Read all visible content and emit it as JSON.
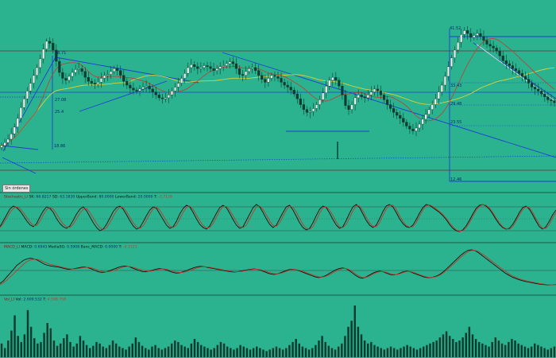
{
  "toolbar": {
    "order_button": "Sin órdenes"
  },
  "colors": {
    "background": "#2bb38f",
    "price_up": "#0f3c30",
    "price_down": "#0f3c30",
    "trendline": "#1d3fd6",
    "ma_yellow": "#d8d23a",
    "ma_red": "#b5473a",
    "ma_maroon": "#6b2c2c",
    "oscillator_black": "#101010",
    "oscillator_red": "#c0392b",
    "level_line": "#1a3a8c",
    "volume": "#0f3c30"
  },
  "chart_data": [
    {
      "type": "candlestick",
      "panel": "price",
      "price_labels": [
        "41.52",
        "38.71",
        "27.08",
        "25.4",
        "18.86",
        "33.43",
        "29.48",
        "23.55",
        "12.46"
      ],
      "y_range": [
        12.46,
        41.52
      ],
      "close": [
        17.2,
        17.8,
        18.5,
        19.6,
        21.0,
        22.8,
        25.0,
        26.8,
        28.4,
        30.0,
        31.6,
        33.2,
        35.0,
        37.0,
        38.6,
        38.2,
        36.8,
        34.5,
        32.2,
        31.0,
        30.6,
        31.4,
        32.2,
        32.8,
        33.0,
        32.4,
        31.2,
        30.4,
        30.0,
        29.8,
        30.2,
        31.0,
        31.6,
        31.8,
        32.4,
        33.0,
        32.6,
        31.6,
        30.4,
        29.6,
        29.0,
        28.6,
        28.4,
        28.8,
        29.2,
        29.4,
        28.8,
        28.2,
        27.6,
        27.0,
        26.8,
        27.0,
        27.6,
        28.4,
        29.2,
        30.0,
        31.0,
        32.0,
        33.2,
        33.8,
        33.4,
        33.0,
        33.2,
        33.6,
        33.4,
        33.0,
        32.6,
        33.0,
        33.4,
        33.6,
        34.0,
        34.4,
        34.0,
        33.0,
        31.8,
        31.6,
        32.4,
        33.0,
        33.2,
        32.6,
        31.6,
        30.8,
        30.2,
        31.0,
        31.6,
        31.4,
        31.0,
        30.2,
        29.6,
        29.2,
        28.6,
        27.8,
        26.8,
        25.6,
        24.6,
        24.0,
        24.2,
        24.8,
        25.6,
        26.6,
        28.0,
        29.4,
        30.6,
        31.2,
        30.6,
        29.4,
        27.6,
        25.4,
        24.6,
        25.6,
        27.0,
        27.6,
        27.2,
        27.0,
        27.6,
        28.2,
        28.8,
        28.4,
        27.6,
        26.6,
        25.6,
        24.8,
        24.0,
        23.4,
        22.8,
        22.0,
        21.2,
        20.6,
        20.2,
        20.8,
        21.6,
        22.6,
        23.6,
        24.6,
        25.6,
        26.8,
        28.2,
        29.6,
        31.4,
        33.4,
        35.2,
        36.8,
        38.4,
        40.0,
        40.8,
        40.2,
        39.4,
        39.8,
        40.2,
        39.6,
        38.8,
        38.0,
        37.6,
        37.2,
        36.6,
        35.6,
        34.6,
        34.0,
        33.6,
        33.0,
        32.6,
        32.0,
        31.4,
        30.8,
        30.0,
        29.2,
        28.8,
        28.4,
        27.8,
        27.2,
        26.6,
        26.4,
        26.0
      ]
    },
    {
      "type": "line",
      "panel": "stochastic",
      "title_parts": [
        {
          "text": "Stochastic_LI ",
          "color": "#8b1010"
        },
        {
          "text": "SK: ",
          "color": "#101010"
        },
        {
          "text": "66.8217",
          "color": "#0a2a6e"
        },
        {
          "text": "  SD: ",
          "color": "#101010"
        },
        {
          "text": "63.1830",
          "color": "#0a2a6e"
        },
        {
          "text": "  UpperBand: ",
          "color": "#101010"
        },
        {
          "text": "80.0000",
          "color": "#0a2a6e"
        },
        {
          "text": "  LowerBand: ",
          "color": "#101010"
        },
        {
          "text": "20.0000",
          "color": "#0a2a6e"
        },
        {
          "text": "  T: ",
          "color": "#101010"
        },
        {
          "text": "-2.7126",
          "color": "#c0392b"
        }
      ],
      "y_range": [
        0,
        100
      ],
      "bands": [
        80,
        20
      ],
      "series": [
        {
          "name": "SK",
          "color": "#101010",
          "values": [
            30,
            45,
            60,
            75,
            82,
            78,
            70,
            58,
            45,
            35,
            30,
            38,
            55,
            70,
            80,
            76,
            66,
            50,
            38,
            30,
            26,
            32,
            46,
            62,
            74,
            80,
            70,
            55,
            40,
            28,
            20,
            24,
            36,
            52,
            68,
            78,
            82,
            74,
            60,
            45,
            32,
            24,
            28,
            42,
            58,
            72,
            80,
            76,
            62,
            48,
            34,
            26,
            30,
            44,
            62,
            76,
            84,
            80,
            66,
            50,
            36,
            28,
            24,
            32,
            48,
            64,
            78,
            84,
            78,
            64,
            48,
            34,
            26,
            30,
            46,
            62,
            78,
            86,
            80,
            66,
            50,
            36,
            28,
            34,
            50,
            66,
            80,
            84,
            72,
            56,
            40,
            28,
            22,
            26,
            40,
            58,
            74,
            82,
            78,
            64,
            48,
            34,
            26,
            30,
            46,
            64,
            80,
            86,
            78,
            62,
            46,
            34,
            28,
            34,
            50,
            68,
            82,
            86,
            80,
            66,
            50,
            38,
            30,
            28,
            34,
            48,
            64,
            78,
            86,
            84,
            78,
            72,
            66,
            58,
            48,
            36,
            26,
            20,
            18,
            22,
            32,
            46,
            62,
            76,
            84,
            86,
            82,
            74,
            62,
            48,
            36,
            28,
            24,
            26,
            36,
            50,
            66,
            78,
            82,
            74,
            60,
            44,
            30,
            24,
            30,
            44,
            60,
            72
          ]
        },
        {
          "name": "SD",
          "color": "#c0392b",
          "values": [
            28,
            38,
            52,
            66,
            76,
            80,
            76,
            66,
            54,
            42,
            33,
            33,
            44,
            60,
            73,
            78,
            74,
            62,
            48,
            37,
            30,
            28,
            36,
            50,
            64,
            74,
            76,
            66,
            52,
            38,
            28,
            23,
            27,
            40,
            56,
            70,
            79,
            78,
            68,
            54,
            40,
            30,
            26,
            32,
            46,
            62,
            75,
            79,
            72,
            58,
            44,
            32,
            28,
            34,
            50,
            66,
            79,
            82,
            74,
            60,
            45,
            33,
            27,
            28,
            38,
            54,
            70,
            81,
            81,
            72,
            58,
            43,
            31,
            28,
            34,
            50,
            66,
            80,
            82,
            74,
            60,
            45,
            33,
            31,
            40,
            56,
            72,
            82,
            79,
            67,
            51,
            36,
            26,
            24,
            30,
            46,
            64,
            78,
            80,
            72,
            58,
            42,
            30,
            28,
            36,
            52,
            70,
            83,
            82,
            70,
            54,
            40,
            31,
            30,
            40,
            58,
            74,
            84,
            84,
            74,
            58,
            44,
            33,
            29,
            30,
            40,
            56,
            72,
            83,
            85,
            81,
            75,
            68,
            61,
            52,
            40,
            30,
            22,
            19,
            20,
            27,
            40,
            56,
            71,
            81,
            86,
            84,
            77,
            66,
            52,
            40,
            30,
            25,
            24,
            30,
            44,
            60,
            73,
            80,
            78,
            66,
            50,
            36,
            26,
            26,
            36,
            52,
            66
          ]
        }
      ]
    },
    {
      "type": "line",
      "panel": "macd",
      "title_parts": [
        {
          "text": "MACD_LI ",
          "color": "#8b1010"
        },
        {
          "text": "MACD: ",
          "color": "#101010"
        },
        {
          "text": "0.6943",
          "color": "#0a2a6e"
        },
        {
          "text": "  MediaSG: ",
          "color": "#101010"
        },
        {
          "text": "0.5908",
          "color": "#0a2a6e"
        },
        {
          "text": "  Banc_MACD: ",
          "color": "#101010"
        },
        {
          "text": "0.0000",
          "color": "#0a2a6e"
        },
        {
          "text": "  T: ",
          "color": "#101010"
        },
        {
          "text": "-0.1121",
          "color": "#c0392b"
        }
      ],
      "y_range": [
        -1.6,
        1.6
      ],
      "zero_line": 0,
      "series": [
        {
          "name": "MACD",
          "color": "#101010",
          "values": [
            -1.0,
            -0.8,
            -0.5,
            -0.2,
            0.1,
            0.4,
            0.6,
            0.8,
            0.9,
            0.95,
            0.9,
            0.8,
            0.65,
            0.5,
            0.4,
            0.35,
            0.3,
            0.28,
            0.22,
            0.15,
            0.1,
            0.1,
            0.15,
            0.2,
            0.25,
            0.28,
            0.22,
            0.12,
            0.0,
            -0.1,
            -0.15,
            -0.12,
            -0.05,
            0.05,
            0.15,
            0.25,
            0.32,
            0.35,
            0.3,
            0.2,
            0.1,
            0.0,
            -0.08,
            -0.1,
            -0.05,
            0.02,
            0.1,
            0.15,
            0.12,
            0.05,
            -0.05,
            -0.15,
            -0.2,
            -0.18,
            -0.1,
            0.0,
            0.1,
            0.2,
            0.28,
            0.32,
            0.3,
            0.25,
            0.2,
            0.15,
            0.1,
            0.05,
            0.0,
            -0.05,
            -0.1,
            -0.12,
            -0.1,
            -0.05,
            0.0,
            0.05,
            0.1,
            0.12,
            0.08,
            0.0,
            -0.1,
            -0.2,
            -0.28,
            -0.3,
            -0.25,
            -0.15,
            -0.05,
            0.05,
            0.1,
            0.08,
            0.0,
            -0.1,
            -0.2,
            -0.3,
            -0.4,
            -0.5,
            -0.55,
            -0.5,
            -0.4,
            -0.25,
            -0.1,
            0.05,
            0.15,
            0.2,
            0.15,
            0.0,
            -0.2,
            -0.4,
            -0.55,
            -0.6,
            -0.5,
            -0.35,
            -0.2,
            -0.1,
            -0.05,
            -0.1,
            -0.2,
            -0.3,
            -0.35,
            -0.3,
            -0.2,
            -0.1,
            -0.05,
            -0.1,
            -0.2,
            -0.3,
            -0.4,
            -0.5,
            -0.55,
            -0.55,
            -0.5,
            -0.4,
            -0.25,
            -0.05,
            0.2,
            0.45,
            0.7,
            0.95,
            1.2,
            1.4,
            1.55,
            1.6,
            1.55,
            1.4,
            1.2,
            1.0,
            0.8,
            0.6,
            0.4,
            0.2,
            0.0,
            -0.2,
            -0.35,
            -0.5,
            -0.6,
            -0.7,
            -0.78,
            -0.85,
            -0.9,
            -0.95,
            -1.0,
            -1.05,
            -1.08,
            -1.1,
            -1.12,
            -1.1,
            -1.08
          ]
        },
        {
          "name": "MediaSG",
          "color": "#c0392b",
          "values": [
            -1.1,
            -0.95,
            -0.75,
            -0.5,
            -0.25,
            0.0,
            0.25,
            0.5,
            0.7,
            0.82,
            0.88,
            0.86,
            0.78,
            0.66,
            0.55,
            0.46,
            0.4,
            0.34,
            0.28,
            0.22,
            0.16,
            0.12,
            0.12,
            0.15,
            0.2,
            0.24,
            0.25,
            0.2,
            0.12,
            0.02,
            -0.06,
            -0.1,
            -0.09,
            -0.04,
            0.04,
            0.14,
            0.23,
            0.3,
            0.31,
            0.27,
            0.19,
            0.1,
            0.02,
            -0.04,
            -0.06,
            -0.03,
            0.04,
            0.1,
            0.12,
            0.1,
            0.03,
            -0.06,
            -0.13,
            -0.16,
            -0.14,
            -0.08,
            0.0,
            0.1,
            0.19,
            0.26,
            0.29,
            0.28,
            0.24,
            0.19,
            0.14,
            0.09,
            0.04,
            0.0,
            -0.05,
            -0.09,
            -0.1,
            -0.08,
            -0.04,
            0.01,
            0.06,
            0.1,
            0.1,
            0.05,
            -0.03,
            -0.12,
            -0.2,
            -0.26,
            -0.26,
            -0.2,
            -0.11,
            -0.01,
            0.06,
            0.08,
            0.04,
            -0.04,
            -0.13,
            -0.22,
            -0.32,
            -0.42,
            -0.5,
            -0.51,
            -0.46,
            -0.35,
            -0.2,
            -0.06,
            0.07,
            0.15,
            0.16,
            0.07,
            -0.09,
            -0.28,
            -0.45,
            -0.55,
            -0.53,
            -0.43,
            -0.29,
            -0.17,
            -0.09,
            -0.08,
            -0.15,
            -0.24,
            -0.31,
            -0.31,
            -0.25,
            -0.15,
            -0.08,
            -0.08,
            -0.15,
            -0.24,
            -0.34,
            -0.44,
            -0.51,
            -0.54,
            -0.52,
            -0.45,
            -0.32,
            -0.14,
            0.08,
            0.32,
            0.56,
            0.8,
            1.04,
            1.26,
            1.44,
            1.55,
            1.56,
            1.48,
            1.32,
            1.14,
            0.94,
            0.74,
            0.54,
            0.34,
            0.14,
            -0.06,
            -0.24,
            -0.4,
            -0.52,
            -0.62,
            -0.71,
            -0.79,
            -0.85,
            -0.9,
            -0.95,
            -1.0,
            -1.04,
            -1.07,
            -1.1,
            -1.1,
            -1.09
          ]
        }
      ]
    },
    {
      "type": "bar",
      "panel": "volume",
      "title_parts": [
        {
          "text": "Vol_LI ",
          "color": "#8b1010"
        },
        {
          "text": "Vol: ",
          "color": "#101010"
        },
        {
          "text": "2.609.532",
          "color": "#0a2a6e"
        },
        {
          "text": "  T: ",
          "color": "#101010"
        },
        {
          "text": "4.598.758",
          "color": "#c0392b"
        }
      ],
      "values": [
        18,
        12,
        22,
        35,
        55,
        28,
        20,
        30,
        62,
        40,
        25,
        18,
        20,
        32,
        45,
        38,
        22,
        15,
        18,
        25,
        30,
        20,
        14,
        18,
        28,
        22,
        16,
        12,
        15,
        20,
        18,
        14,
        12,
        16,
        22,
        18,
        14,
        12,
        10,
        14,
        18,
        26,
        20,
        15,
        12,
        10,
        14,
        16,
        12,
        10,
        12,
        14,
        18,
        22,
        20,
        16,
        14,
        12,
        18,
        24,
        20,
        16,
        14,
        12,
        10,
        12,
        16,
        20,
        18,
        14,
        12,
        10,
        12,
        16,
        14,
        12,
        10,
        12,
        14,
        12,
        10,
        8,
        10,
        12,
        14,
        12,
        10,
        12,
        16,
        20,
        24,
        18,
        14,
        12,
        10,
        12,
        16,
        22,
        28,
        20,
        15,
        12,
        10,
        14,
        18,
        28,
        40,
        48,
        68,
        40,
        30,
        22,
        18,
        20,
        16,
        14,
        12,
        10,
        12,
        14,
        12,
        10,
        12,
        14,
        16,
        14,
        12,
        10,
        12,
        14,
        16,
        18,
        20,
        22,
        26,
        30,
        34,
        28,
        24,
        20,
        22,
        26,
        32,
        40,
        30,
        24,
        20,
        18,
        16,
        14,
        20,
        26,
        22,
        18,
        16,
        20,
        24,
        22,
        18,
        16,
        14,
        12,
        14,
        18,
        16,
        14,
        12,
        10,
        12,
        14
      ]
    }
  ]
}
